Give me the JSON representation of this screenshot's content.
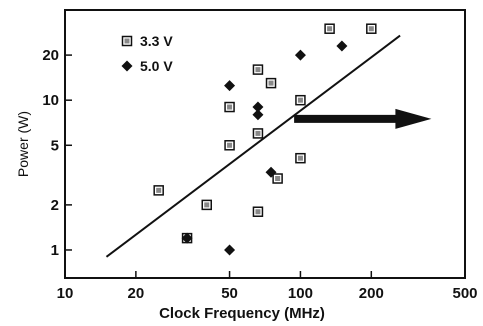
{
  "chart_data": {
    "type": "scatter",
    "title": "",
    "xlabel": "Clock Frequency (MHz)",
    "ylabel": "Power (W)",
    "xscale": "log",
    "yscale": "log",
    "xlim": [
      10,
      500
    ],
    "ylim": [
      0.65,
      40
    ],
    "x_ticks": [
      10,
      20,
      50,
      100,
      200,
      500
    ],
    "x_tick_labels": [
      "10",
      "20",
      "50",
      "100",
      "200",
      "500"
    ],
    "y_ticks": [
      1,
      2,
      5,
      10,
      20
    ],
    "y_tick_labels": [
      "1",
      "2",
      "5",
      "10",
      "20"
    ],
    "grid": false,
    "legend_position": "top-left",
    "series": [
      {
        "name": "3.3 V",
        "marker": "square",
        "points": [
          [
            25,
            2.5
          ],
          [
            33,
            1.2
          ],
          [
            40,
            2.0
          ],
          [
            50,
            9.0
          ],
          [
            50,
            5.0
          ],
          [
            66,
            16
          ],
          [
            66,
            6.0
          ],
          [
            66,
            1.8
          ],
          [
            75,
            13
          ],
          [
            80,
            3.0
          ],
          [
            100,
            10
          ],
          [
            100,
            4.1
          ],
          [
            133,
            30
          ],
          [
            200,
            30
          ]
        ]
      },
      {
        "name": "5.0 V",
        "marker": "diamond",
        "points": [
          [
            33,
            1.2
          ],
          [
            50,
            12.5
          ],
          [
            50,
            1.0
          ],
          [
            66,
            9.0
          ],
          [
            66,
            8.0
          ],
          [
            75,
            3.3
          ],
          [
            100,
            20
          ],
          [
            150,
            23
          ]
        ]
      }
    ],
    "trend_line": {
      "from": [
        15,
        0.9
      ],
      "to": [
        265,
        27
      ]
    },
    "arrow": {
      "from": [
        94,
        7.5
      ],
      "to": [
        360,
        7.5
      ],
      "direction": "right"
    }
  }
}
